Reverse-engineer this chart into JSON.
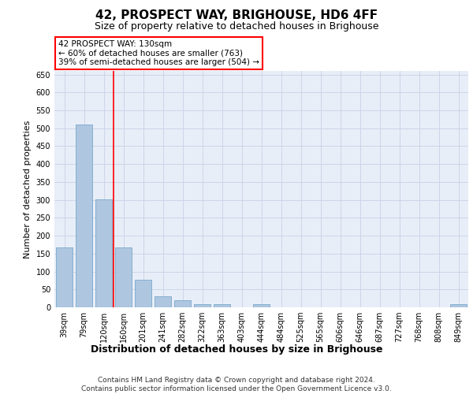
{
  "title": "42, PROSPECT WAY, BRIGHOUSE, HD6 4FF",
  "subtitle": "Size of property relative to detached houses in Brighouse",
  "xlabel": "Distribution of detached houses by size in Brighouse",
  "ylabel": "Number of detached properties",
  "categories": [
    "39sqm",
    "79sqm",
    "120sqm",
    "160sqm",
    "201sqm",
    "241sqm",
    "282sqm",
    "322sqm",
    "363sqm",
    "403sqm",
    "444sqm",
    "484sqm",
    "525sqm",
    "565sqm",
    "606sqm",
    "646sqm",
    "687sqm",
    "727sqm",
    "768sqm",
    "808sqm",
    "849sqm"
  ],
  "values": [
    168,
    511,
    302,
    168,
    78,
    31,
    20,
    8,
    8,
    0,
    8,
    0,
    0,
    0,
    0,
    0,
    0,
    0,
    0,
    0,
    8
  ],
  "bar_color": "#aec6df",
  "bar_edge_color": "#7aa8cc",
  "annotation_text": "42 PROSPECT WAY: 130sqm\n← 60% of detached houses are smaller (763)\n39% of semi-detached houses are larger (504) →",
  "annotation_box_color": "white",
  "annotation_box_edge_color": "red",
  "vline_color": "red",
  "vline_x": 2.5,
  "ylim": [
    0,
    660
  ],
  "yticks": [
    0,
    50,
    100,
    150,
    200,
    250,
    300,
    350,
    400,
    450,
    500,
    550,
    600,
    650
  ],
  "grid_color": "#ccd5e8",
  "bg_color": "#e8eef8",
  "footer_line1": "Contains HM Land Registry data © Crown copyright and database right 2024.",
  "footer_line2": "Contains public sector information licensed under the Open Government Licence v3.0.",
  "title_fontsize": 11,
  "subtitle_fontsize": 9,
  "ylabel_fontsize": 8,
  "xlabel_fontsize": 9,
  "tick_fontsize": 7,
  "annot_fontsize": 7.5,
  "footer_fontsize": 6.5
}
